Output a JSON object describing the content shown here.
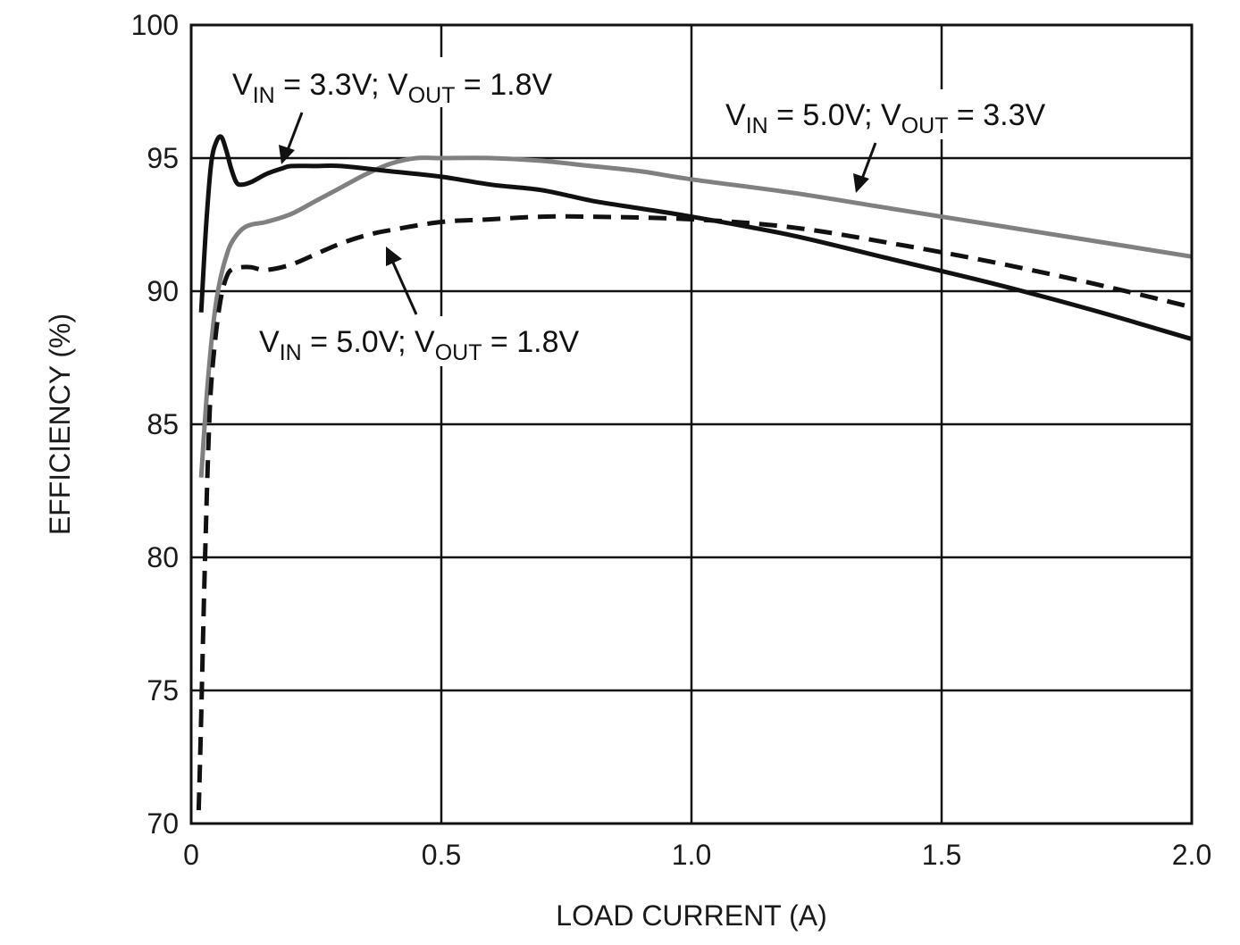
{
  "chart_data": {
    "type": "line",
    "title": "",
    "xlabel": "LOAD CURRENT (A)",
    "ylabel": "EFFICIENCY (%)",
    "xlim": [
      0,
      2.0
    ],
    "ylim": [
      70,
      100
    ],
    "grid": true,
    "xticks": [
      0,
      0.5,
      1.0,
      1.5,
      2.0
    ],
    "xtick_labels": [
      "0",
      "0.5",
      "1.0",
      "1.5",
      "2.0"
    ],
    "yticks": [
      70,
      75,
      80,
      85,
      90,
      95,
      100
    ],
    "ytick_labels": [
      "70",
      "75",
      "80",
      "85",
      "90",
      "95",
      "100"
    ],
    "series": [
      {
        "name": "VIN = 3.3V; VOUT = 1.8V",
        "style": "solid",
        "color": "#111111",
        "x": [
          0.02,
          0.03,
          0.04,
          0.05,
          0.06,
          0.07,
          0.08,
          0.09,
          0.1,
          0.12,
          0.15,
          0.18,
          0.2,
          0.25,
          0.3,
          0.4,
          0.5,
          0.6,
          0.7,
          0.8,
          0.9,
          1.0,
          1.2,
          1.4,
          1.6,
          1.8,
          2.0
        ],
        "y": [
          89.2,
          92.5,
          94.8,
          95.6,
          95.8,
          95.3,
          94.6,
          94.1,
          94.0,
          94.1,
          94.4,
          94.6,
          94.7,
          94.7,
          94.7,
          94.5,
          94.3,
          94.0,
          93.8,
          93.4,
          93.1,
          92.8,
          92.1,
          91.2,
          90.3,
          89.3,
          88.2
        ]
      },
      {
        "name": "VIN = 5.0V; VOUT = 3.3V",
        "style": "solid",
        "color": "#808080",
        "x": [
          0.02,
          0.03,
          0.04,
          0.05,
          0.06,
          0.07,
          0.08,
          0.1,
          0.12,
          0.15,
          0.2,
          0.25,
          0.3,
          0.35,
          0.4,
          0.45,
          0.5,
          0.6,
          0.7,
          0.8,
          0.9,
          1.0,
          1.2,
          1.4,
          1.6,
          1.8,
          2.0
        ],
        "y": [
          83.0,
          85.8,
          88.0,
          89.6,
          90.6,
          91.3,
          91.8,
          92.3,
          92.5,
          92.6,
          92.9,
          93.4,
          93.9,
          94.4,
          94.8,
          95.0,
          95.0,
          95.0,
          94.9,
          94.7,
          94.5,
          94.2,
          93.7,
          93.1,
          92.5,
          91.9,
          91.3
        ]
      },
      {
        "name": "VIN = 5.0V; VOUT = 1.8V",
        "style": "dashed",
        "color": "#111111",
        "x": [
          0.015,
          0.02,
          0.025,
          0.03,
          0.035,
          0.04,
          0.05,
          0.06,
          0.07,
          0.08,
          0.1,
          0.12,
          0.15,
          0.2,
          0.25,
          0.3,
          0.35,
          0.4,
          0.5,
          0.6,
          0.7,
          0.8,
          1.0,
          1.2,
          1.4,
          1.6,
          1.8,
          2.0
        ],
        "y": [
          70.5,
          74.0,
          78.0,
          81.5,
          84.5,
          86.5,
          88.5,
          89.8,
          90.5,
          90.8,
          90.9,
          90.9,
          90.8,
          91.0,
          91.4,
          91.8,
          92.1,
          92.3,
          92.6,
          92.7,
          92.8,
          92.8,
          92.7,
          92.4,
          91.8,
          91.1,
          90.3,
          89.4
        ]
      }
    ],
    "annotations": [
      {
        "v1": "V",
        "s1": "IN",
        "t1": " = 3.3V; V",
        "s2": "OUT",
        "t2": " = 1.8V",
        "series": 0
      },
      {
        "v1": "V",
        "s1": "IN",
        "t1": " = 5.0V; V",
        "s2": "OUT",
        "t2": " = 3.3V",
        "series": 1
      },
      {
        "v1": "V",
        "s1": "IN",
        "t1": " = 5.0V; V",
        "s2": "OUT",
        "t2": " = 1.8V",
        "series": 2
      }
    ]
  }
}
